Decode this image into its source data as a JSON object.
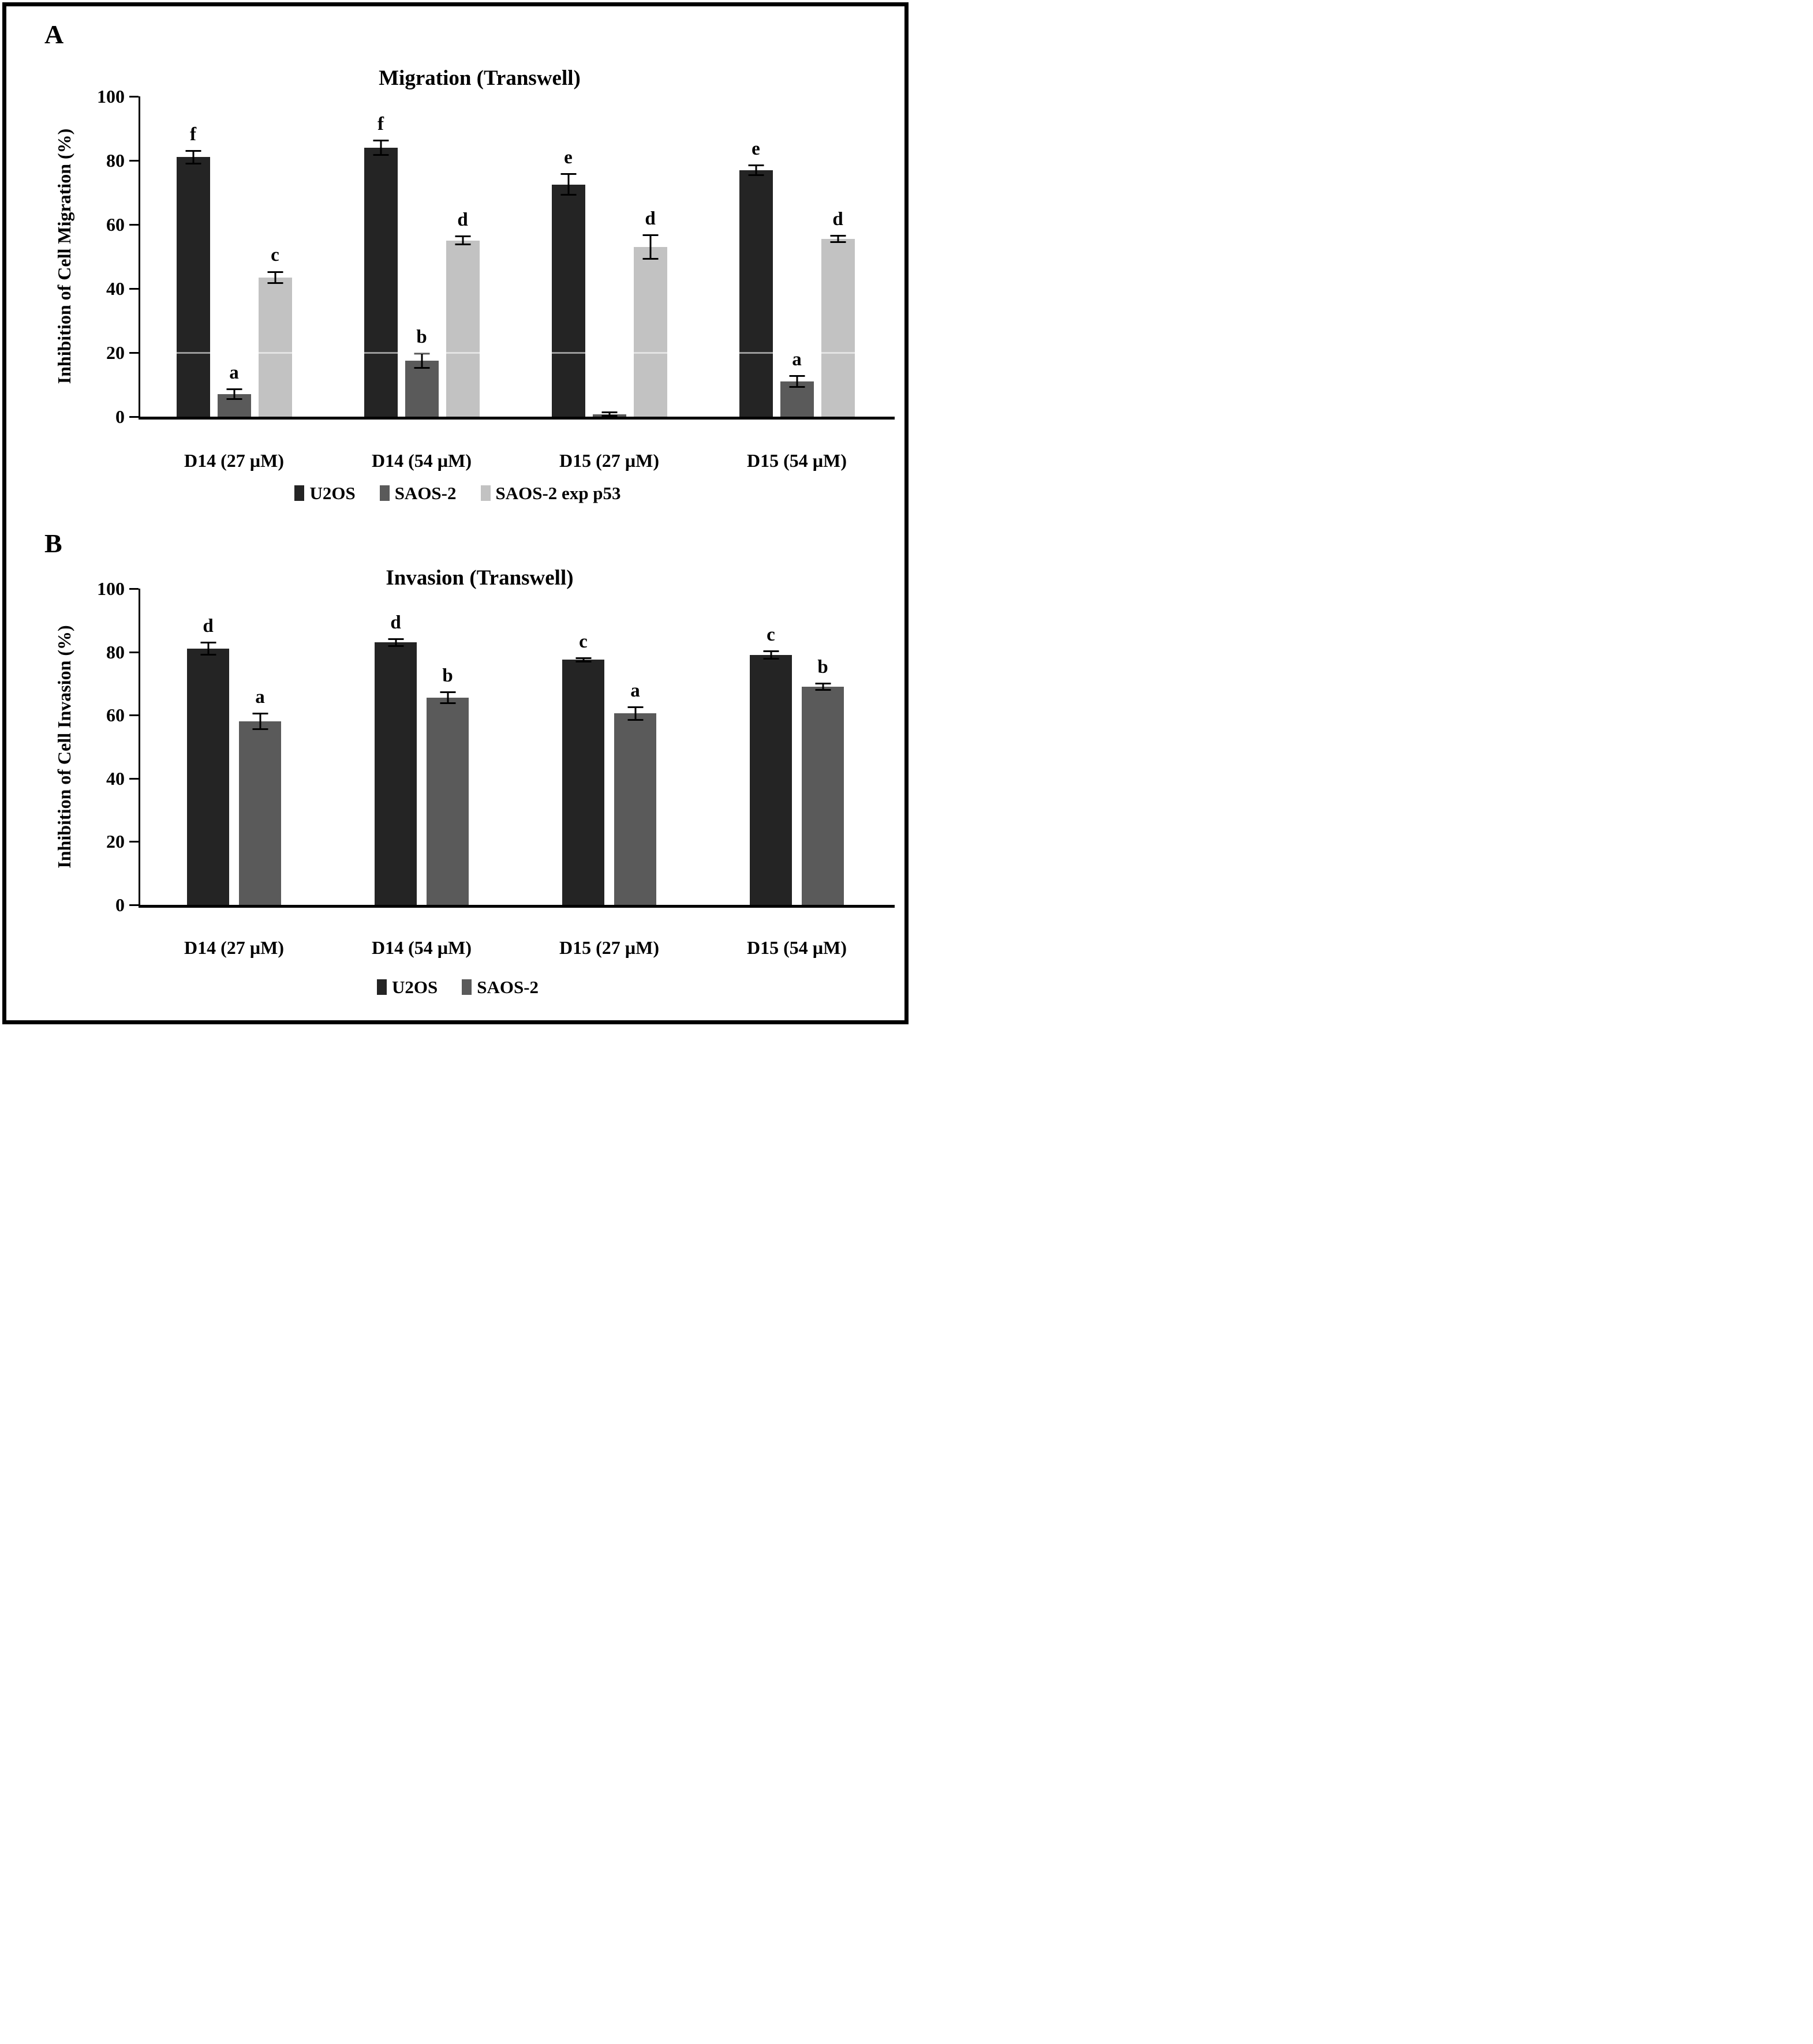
{
  "chart_data": [
    {
      "type": "bar",
      "panel": "A",
      "title": "Migration (Transwell)",
      "ylabel": "Inhibition of Cell Migration (%)",
      "ylim": [
        0,
        100
      ],
      "yticks": [
        0,
        20,
        40,
        60,
        80,
        100
      ],
      "grid": false,
      "faint_gridline_at": 20,
      "legend_position": "bottom",
      "categories": [
        "D14 (27 µM)",
        "D14 (54 µM)",
        "D15 (27 µM)",
        "D15 (54 µM)"
      ],
      "series": [
        {
          "name": "U2OS",
          "color": "#242424",
          "values": [
            81,
            84,
            72.5,
            77
          ],
          "errors": [
            2.3,
            2.5,
            3.5,
            1.8
          ],
          "sig_letters": [
            "f",
            "f",
            "e",
            "e"
          ]
        },
        {
          "name": "SAOS-2",
          "color": "#5a5a5a",
          "values": [
            7,
            17.5,
            0.8,
            11
          ],
          "errors": [
            1.8,
            2.5,
            0.8,
            2.0
          ],
          "sig_letters": [
            "a",
            "b",
            "",
            "a"
          ]
        },
        {
          "name": "SAOS-2 exp p53",
          "color": "#c2c2c2",
          "values": [
            43.5,
            55,
            53,
            55.5
          ],
          "errors": [
            2.0,
            1.5,
            4.0,
            1.2
          ],
          "sig_letters": [
            "c",
            "d",
            "d",
            "d"
          ]
        }
      ]
    },
    {
      "type": "bar",
      "panel": "B",
      "title": "Invasion (Transwell)",
      "ylabel": "Inhibition of Cell Invasion (%)",
      "ylim": [
        0,
        100
      ],
      "yticks": [
        0,
        20,
        40,
        60,
        80,
        100
      ],
      "grid": false,
      "faint_gridline_at": null,
      "legend_position": "bottom",
      "categories": [
        "D14 (27 µM)",
        "D14 (54 µM)",
        "D15 (27 µM)",
        "D15 (54 µM)"
      ],
      "series": [
        {
          "name": "U2OS",
          "color": "#242424",
          "values": [
            81,
            83,
            77.5,
            79
          ],
          "errors": [
            2.2,
            1.4,
            0.8,
            1.4
          ],
          "sig_letters": [
            "d",
            "d",
            "c",
            "c"
          ]
        },
        {
          "name": "SAOS-2",
          "color": "#5a5a5a",
          "values": [
            58,
            65.5,
            60.5,
            69
          ],
          "errors": [
            2.7,
            2.0,
            2.2,
            1.3
          ],
          "sig_letters": [
            "a",
            "b",
            "a",
            "b"
          ]
        }
      ]
    }
  ]
}
